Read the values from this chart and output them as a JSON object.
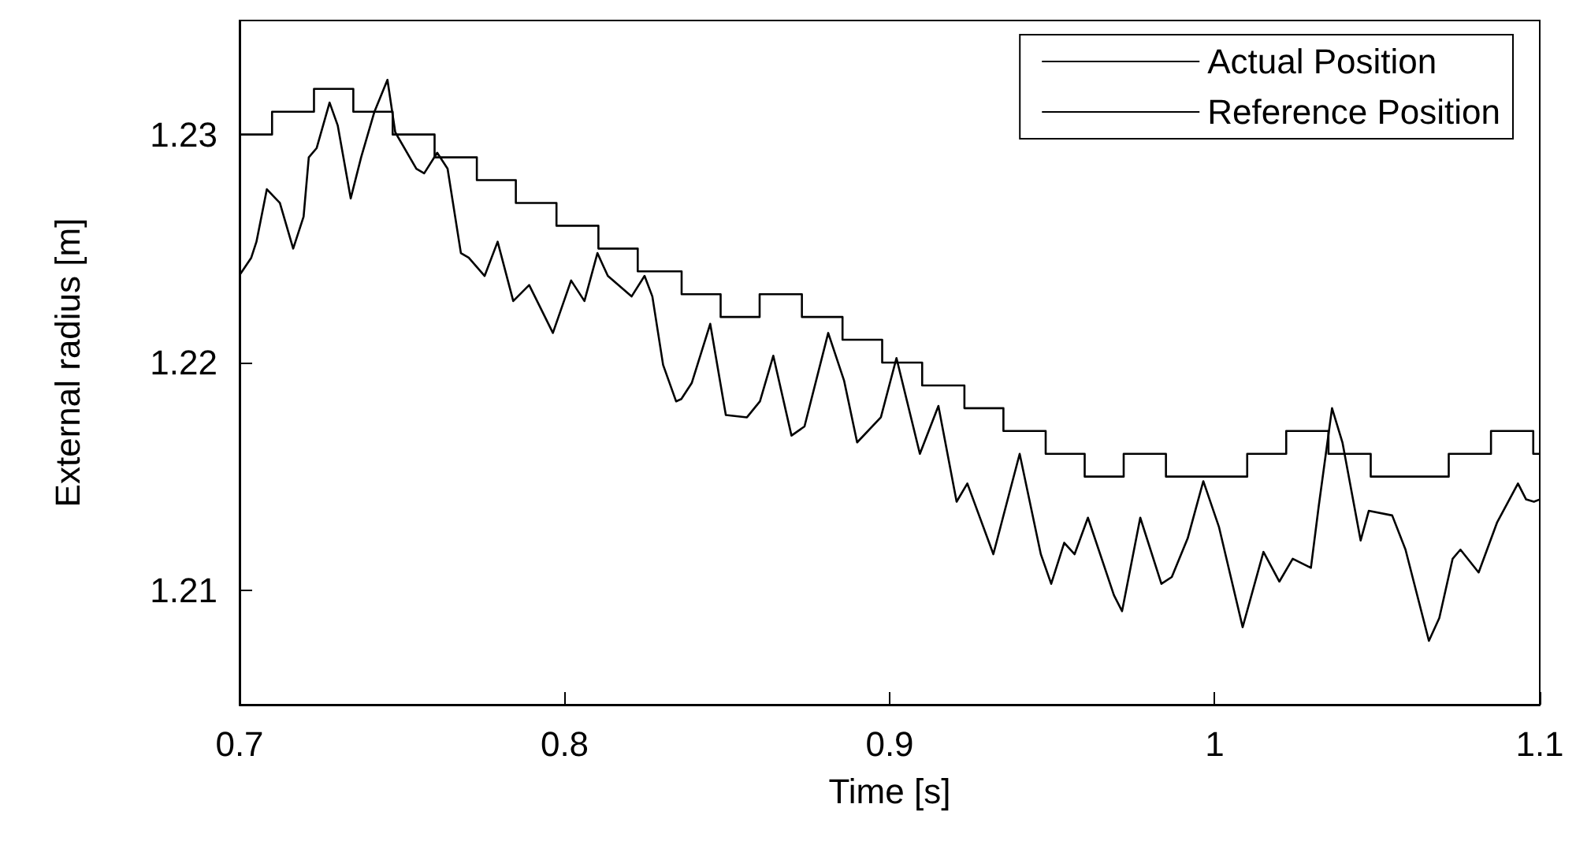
{
  "chart_data": {
    "type": "line",
    "xlabel": "Time [s]",
    "ylabel": "External radius [m]",
    "xlim": [
      0.7,
      1.1
    ],
    "xticks": [
      0.7,
      0.8,
      0.9,
      1,
      1.1
    ],
    "ylim": [
      1.205,
      1.235
    ],
    "yticks": [
      1.21,
      1.22,
      1.23
    ],
    "grid": false,
    "legend": "top right",
    "marker": "none",
    "line_style": "solid",
    "series": [
      {
        "name": "Actual Position",
        "color": "#000000",
        "x": [
          0.7003,
          0.7036,
          0.7052,
          0.7084,
          0.7124,
          0.7165,
          0.7197,
          0.7213,
          0.7237,
          0.7277,
          0.7302,
          0.7342,
          0.7374,
          0.7415,
          0.7455,
          0.7479,
          0.7544,
          0.7568,
          0.7608,
          0.764,
          0.7681,
          0.7705,
          0.7754,
          0.7794,
          0.7842,
          0.7891,
          0.7964,
          0.802,
          0.8061,
          0.8101,
          0.8133,
          0.8206,
          0.8246,
          0.827,
          0.8303,
          0.8343,
          0.8359,
          0.8391,
          0.8448,
          0.8496,
          0.8561,
          0.8601,
          0.8642,
          0.8698,
          0.8738,
          0.8811,
          0.886,
          0.89,
          0.8973,
          0.9021,
          0.9093,
          0.915,
          0.9206,
          0.9239,
          0.9319,
          0.94,
          0.9465,
          0.9497,
          0.9537,
          0.9569,
          0.961,
          0.969,
          0.9715,
          0.9771,
          0.9836,
          0.9868,
          0.9917,
          0.9965,
          1.0013,
          1.0086,
          1.015,
          1.0199,
          1.024,
          1.0296,
          1.032,
          1.0361,
          1.0393,
          1.0449,
          1.0474,
          1.0546,
          1.0587,
          1.0659,
          1.0691,
          1.0732,
          1.0756,
          1.0812,
          1.0869,
          1.0933,
          1.0958,
          1.0982,
          1.1
        ],
        "values": [
          1.2239,
          1.2246,
          1.2253,
          1.2276,
          1.227,
          1.225,
          1.2264,
          1.229,
          1.2294,
          1.2314,
          1.2304,
          1.2272,
          1.229,
          1.231,
          1.2324,
          1.2301,
          1.2285,
          1.2283,
          1.2292,
          1.2285,
          1.2248,
          1.2246,
          1.2238,
          1.2253,
          1.2227,
          1.2234,
          1.2213,
          1.2236,
          1.2227,
          1.2248,
          1.2238,
          1.2229,
          1.2238,
          1.2229,
          1.2199,
          1.2183,
          1.2184,
          1.2191,
          1.2217,
          1.2177,
          1.2176,
          1.2183,
          1.2203,
          1.2168,
          1.2172,
          1.2213,
          1.2192,
          1.2165,
          1.2176,
          1.2202,
          1.216,
          1.2181,
          1.2139,
          1.2147,
          1.2116,
          1.216,
          1.2116,
          1.2103,
          1.2121,
          1.2116,
          1.2132,
          1.2098,
          1.2091,
          1.2132,
          1.2103,
          1.2106,
          1.2123,
          1.2148,
          1.2128,
          1.2084,
          1.2117,
          1.2104,
          1.2114,
          1.211,
          1.2137,
          1.218,
          1.2165,
          1.2122,
          1.2135,
          1.2133,
          1.2118,
          1.2078,
          1.2088,
          1.2114,
          1.2118,
          1.2108,
          1.213,
          1.2147,
          1.214,
          1.2139,
          1.214
        ]
      },
      {
        "name": "Reference Position",
        "type": "step",
        "color": "#000000",
        "x": [
          0.7,
          0.71,
          0.7229,
          0.735,
          0.7471,
          0.76,
          0.773,
          0.785,
          0.7975,
          0.8104,
          0.8225,
          0.836,
          0.848,
          0.86,
          0.873,
          0.8855,
          0.8977,
          0.91,
          0.923,
          0.935,
          0.948,
          0.96,
          0.972,
          0.985,
          1.01,
          1.022,
          1.035,
          1.048,
          1.072,
          1.085,
          1.098,
          1.1
        ],
        "values": [
          1.23,
          1.231,
          1.232,
          1.231,
          1.23,
          1.229,
          1.228,
          1.227,
          1.226,
          1.225,
          1.224,
          1.223,
          1.222,
          1.223,
          1.222,
          1.221,
          1.22,
          1.219,
          1.218,
          1.217,
          1.216,
          1.215,
          1.216,
          1.215,
          1.216,
          1.217,
          1.216,
          1.215,
          1.216,
          1.217,
          1.216,
          1.216
        ]
      }
    ]
  }
}
